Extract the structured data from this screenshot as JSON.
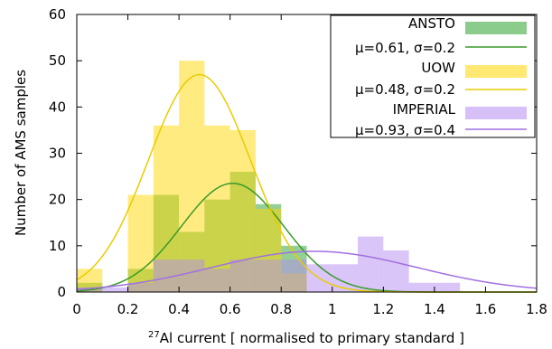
{
  "chart_data": {
    "type": "bar",
    "title": "",
    "xlabel_sup": "27",
    "xlabel": "Al current [ normalised to primary standard ]",
    "ylabel": "Number of AMS samples",
    "xlim": [
      0,
      1.8
    ],
    "ylim": [
      0,
      60
    ],
    "xticks": [
      "0",
      "0.2",
      "0.4",
      "0.6",
      "0.8",
      "1",
      "1.2",
      "1.4",
      "1.6",
      "1.8"
    ],
    "yticks": [
      "0",
      "10",
      "20",
      "30",
      "40",
      "50",
      "60"
    ],
    "bin_width": 0.1,
    "bin_starts": [
      0.0,
      0.1,
      0.2,
      0.3,
      0.4,
      0.5,
      0.6,
      0.7,
      0.8,
      0.9,
      1.0,
      1.1,
      1.2,
      1.3,
      1.4
    ],
    "grid": false,
    "legend_position": "top-right",
    "series": [
      {
        "name": "ANSTO",
        "values": [
          2,
          0,
          5,
          21,
          13,
          20,
          26,
          19,
          10,
          0,
          0,
          0,
          0,
          0,
          0
        ],
        "color": "#2ca02c",
        "fit": {
          "label": "μ=0.61, σ=0.2",
          "mu": 0.61,
          "sigma": 0.2,
          "peak": 23.5,
          "color": "#3a9a2a"
        }
      },
      {
        "name": "UOW",
        "values": [
          5,
          0,
          21,
          36,
          50,
          36,
          35,
          18,
          4,
          0,
          0,
          0,
          0,
          0,
          0
        ],
        "color": "#ffd700",
        "fit": {
          "label": "μ=0.48, σ=0.2",
          "mu": 0.48,
          "sigma": 0.2,
          "peak": 47,
          "color": "#e8cc00"
        }
      },
      {
        "name": "IMPERIAL",
        "values": [
          1,
          1,
          2,
          7,
          7,
          5,
          7,
          7,
          7,
          6,
          6,
          12,
          9,
          2,
          2
        ],
        "color": "#b48cf0",
        "fit": {
          "label": "μ=0.93, σ=0.4",
          "mu": 0.93,
          "sigma": 0.4,
          "peak": 8.8,
          "color": "#a070e0"
        }
      }
    ]
  }
}
